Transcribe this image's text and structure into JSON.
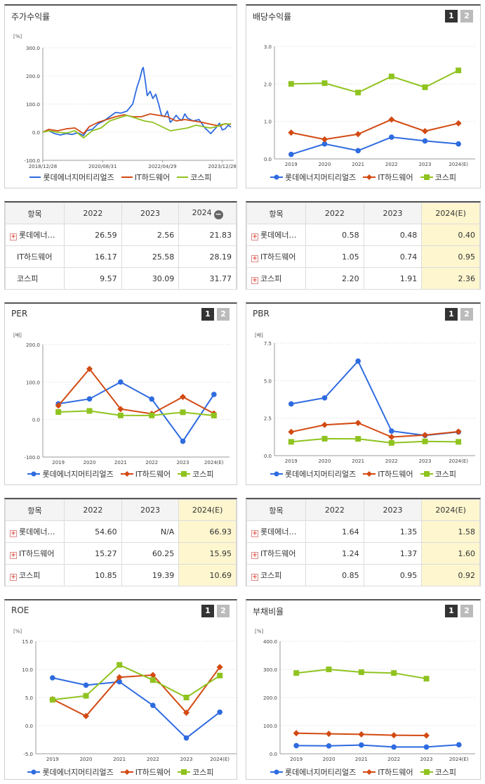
{
  "colors": {
    "lotte": "#2e6be0",
    "it": "#d24a12",
    "kospi": "#8fc31f"
  },
  "legend": [
    "롯데에너지머티리얼즈",
    "IT하드웨어",
    "코스피"
  ],
  "panels": {
    "stock": {
      "title": "주가수익률",
      "unit": "[%]"
    },
    "dividend": {
      "title": "배당수익률",
      "unit": ""
    },
    "per": {
      "title": "PER",
      "unit": "[배]"
    },
    "pbr": {
      "title": "PBR",
      "unit": "[배]"
    },
    "roe": {
      "title": "ROE",
      "unit": "[%]"
    },
    "debt": {
      "title": "부채비율",
      "unit": "[%]"
    }
  },
  "buttons": {
    "one": "1",
    "two": "2"
  },
  "tables": {
    "stock": {
      "headers": [
        "항목",
        "2022",
        "2023",
        "2024"
      ],
      "rows": [
        {
          "name": "롯데에너…",
          "v": [
            "26.59",
            "2.56",
            "21.83"
          ]
        },
        {
          "name": "IT하드웨어",
          "v": [
            "16.17",
            "25.58",
            "28.19"
          ]
        },
        {
          "name": "코스피",
          "v": [
            "9.57",
            "30.09",
            "31.77"
          ]
        }
      ]
    },
    "dividend": {
      "headers": [
        "항목",
        "2022",
        "2023",
        "2024(E)"
      ],
      "rows": [
        {
          "name": "롯데에너…",
          "v": [
            "0.58",
            "0.48",
            "0.40"
          ]
        },
        {
          "name": "IT하드웨어",
          "v": [
            "1.05",
            "0.74",
            "0.95"
          ]
        },
        {
          "name": "코스피",
          "v": [
            "2.20",
            "1.91",
            "2.36"
          ]
        }
      ]
    },
    "per": {
      "headers": [
        "항목",
        "2022",
        "2023",
        "2024(E)"
      ],
      "rows": [
        {
          "name": "롯데에너…",
          "v": [
            "54.60",
            "N/A",
            "66.93"
          ]
        },
        {
          "name": "IT하드웨어",
          "v": [
            "15.27",
            "60.25",
            "15.95"
          ]
        },
        {
          "name": "코스피",
          "v": [
            "10.85",
            "19.39",
            "10.69"
          ]
        }
      ]
    },
    "pbr": {
      "headers": [
        "항목",
        "2022",
        "2023",
        "2024(E)"
      ],
      "rows": [
        {
          "name": "롯데에너…",
          "v": [
            "1.64",
            "1.35",
            "1.58"
          ]
        },
        {
          "name": "IT하드웨어",
          "v": [
            "1.24",
            "1.37",
            "1.60"
          ]
        },
        {
          "name": "코스피",
          "v": [
            "0.85",
            "0.95",
            "0.92"
          ]
        }
      ]
    }
  },
  "chart_data": [
    {
      "id": "stock",
      "type": "line",
      "title": "주가수익률",
      "ylabel": "[%]",
      "ylim": [
        -100,
        300
      ],
      "yticks": [
        "-100.0",
        "0.0",
        "100.0",
        "200.0",
        "300.0"
      ],
      "x_tick_labels": [
        "2018/12/28",
        "2020/08/31",
        "2022/04/29",
        "2023/12/28"
      ],
      "x_range": [
        "2018-12-28",
        "2024-06-30"
      ],
      "series": [
        {
          "name": "롯데에너지머티리얼즈",
          "points": [
            [
              "2018-12-28",
              0
            ],
            [
              "2019-03-01",
              5
            ],
            [
              "2019-05-01",
              -5
            ],
            [
              "2019-07-01",
              -10
            ],
            [
              "2019-09-01",
              -5
            ],
            [
              "2019-11-01",
              -8
            ],
            [
              "2020-01-01",
              -2
            ],
            [
              "2020-03-01",
              -12
            ],
            [
              "2020-04-01",
              5
            ],
            [
              "2020-06-01",
              10
            ],
            [
              "2020-08-01",
              30
            ],
            [
              "2020-10-01",
              40
            ],
            [
              "2020-12-01",
              55
            ],
            [
              "2021-02-01",
              70
            ],
            [
              "2021-04-01",
              68
            ],
            [
              "2021-06-01",
              75
            ],
            [
              "2021-08-01",
              100
            ],
            [
              "2021-09-15",
              160
            ],
            [
              "2021-10-15",
              190
            ],
            [
              "2021-11-10",
              225
            ],
            [
              "2021-11-20",
              230
            ],
            [
              "2021-12-10",
              185
            ],
            [
              "2022-01-01",
              130
            ],
            [
              "2022-02-01",
              145
            ],
            [
              "2022-03-01",
              120
            ],
            [
              "2022-04-01",
              135
            ],
            [
              "2022-05-01",
              100
            ],
            [
              "2022-06-01",
              60
            ],
            [
              "2022-07-01",
              55
            ],
            [
              "2022-08-01",
              75
            ],
            [
              "2022-09-01",
              35
            ],
            [
              "2022-10-01",
              45
            ],
            [
              "2022-11-01",
              60
            ],
            [
              "2022-12-01",
              48
            ],
            [
              "2023-01-01",
              42
            ],
            [
              "2023-02-01",
              65
            ],
            [
              "2023-03-01",
              50
            ],
            [
              "2023-05-01",
              40
            ],
            [
              "2023-07-01",
              45
            ],
            [
              "2023-09-01",
              15
            ],
            [
              "2023-11-01",
              -5
            ],
            [
              "2024-01-01",
              18
            ],
            [
              "2024-02-01",
              32
            ],
            [
              "2024-03-01",
              8
            ],
            [
              "2024-04-01",
              12
            ],
            [
              "2024-05-01",
              25
            ],
            [
              "2024-06-01",
              18
            ]
          ]
        },
        {
          "name": "IT하드웨어",
          "points": [
            [
              "2018-12-28",
              0
            ],
            [
              "2019-03-01",
              10
            ],
            [
              "2019-06-01",
              5
            ],
            [
              "2019-09-01",
              12
            ],
            [
              "2019-12-01",
              15
            ],
            [
              "2020-03-01",
              -5
            ],
            [
              "2020-05-01",
              20
            ],
            [
              "2020-08-01",
              35
            ],
            [
              "2020-11-01",
              45
            ],
            [
              "2021-02-01",
              55
            ],
            [
              "2021-05-01",
              62
            ],
            [
              "2021-08-01",
              55
            ],
            [
              "2021-11-01",
              55
            ],
            [
              "2022-02-01",
              65
            ],
            [
              "2022-05-01",
              60
            ],
            [
              "2022-08-01",
              55
            ],
            [
              "2022-11-01",
              40
            ],
            [
              "2023-02-01",
              45
            ],
            [
              "2023-05-01",
              40
            ],
            [
              "2023-08-01",
              35
            ],
            [
              "2023-11-01",
              28
            ],
            [
              "2024-02-01",
              22
            ],
            [
              "2024-04-01",
              30
            ],
            [
              "2024-06-01",
              28
            ]
          ]
        },
        {
          "name": "코스피",
          "points": [
            [
              "2018-12-28",
              0
            ],
            [
              "2019-03-01",
              5
            ],
            [
              "2019-06-01",
              0
            ],
            [
              "2019-09-01",
              -3
            ],
            [
              "2019-12-01",
              5
            ],
            [
              "2020-03-01",
              -20
            ],
            [
              "2020-06-01",
              5
            ],
            [
              "2020-09-01",
              15
            ],
            [
              "2020-12-01",
              40
            ],
            [
              "2021-03-01",
              50
            ],
            [
              "2021-06-01",
              60
            ],
            [
              "2021-09-01",
              50
            ],
            [
              "2021-12-01",
              40
            ],
            [
              "2022-03-01",
              35
            ],
            [
              "2022-06-01",
              20
            ],
            [
              "2022-09-01",
              5
            ],
            [
              "2022-12-01",
              10
            ],
            [
              "2023-03-01",
              15
            ],
            [
              "2023-06-01",
              25
            ],
            [
              "2023-09-01",
              18
            ],
            [
              "2023-11-01",
              15
            ],
            [
              "2024-01-01",
              20
            ],
            [
              "2024-03-01",
              28
            ],
            [
              "2024-06-01",
              30
            ]
          ]
        }
      ]
    },
    {
      "id": "dividend",
      "type": "line",
      "title": "배당수익률",
      "categories": [
        "2019",
        "2020",
        "2021",
        "2022",
        "2023",
        "2024(E)"
      ],
      "ylim": [
        0,
        3
      ],
      "yticks": [
        "0.0",
        "1.0",
        "2.0",
        "3.0"
      ],
      "series": [
        {
          "name": "롯데에너지머티리얼즈",
          "values": [
            0.12,
            0.4,
            0.22,
            0.58,
            0.48,
            0.4
          ]
        },
        {
          "name": "IT하드웨어",
          "values": [
            0.7,
            0.52,
            0.66,
            1.05,
            0.74,
            0.95
          ]
        },
        {
          "name": "코스피",
          "values": [
            2.0,
            2.02,
            1.77,
            2.2,
            1.91,
            2.36
          ]
        }
      ]
    },
    {
      "id": "per",
      "type": "line",
      "title": "PER",
      "ylabel": "[배]",
      "categories": [
        "2019",
        "2020",
        "2021",
        "2022",
        "2023",
        "2024(E)"
      ],
      "ylim": [
        -100,
        200
      ],
      "yticks": [
        "-100.0",
        "0.0",
        "100.0",
        "200.0"
      ],
      "series": [
        {
          "name": "롯데에너지머티리얼즈",
          "values": [
            42,
            55,
            100,
            54.6,
            -58,
            66.93
          ]
        },
        {
          "name": "IT하드웨어",
          "values": [
            37,
            135,
            28,
            15.27,
            60.25,
            15.95
          ]
        },
        {
          "name": "코스피",
          "values": [
            20,
            23,
            11,
            10.85,
            19.39,
            10.69
          ]
        }
      ]
    },
    {
      "id": "pbr",
      "type": "line",
      "title": "PBR",
      "ylabel": "[배]",
      "categories": [
        "2019",
        "2020",
        "2021",
        "2022",
        "2023",
        "2024(E)"
      ],
      "ylim": [
        0,
        7.5
      ],
      "yticks": [
        "0.0",
        "2.5",
        "5.0",
        "7.5"
      ],
      "series": [
        {
          "name": "롯데에너지머티리얼즈",
          "values": [
            3.45,
            3.85,
            6.3,
            1.64,
            1.35,
            1.58
          ]
        },
        {
          "name": "IT하드웨어",
          "values": [
            1.58,
            2.05,
            2.18,
            1.24,
            1.37,
            1.6
          ]
        },
        {
          "name": "코스피",
          "values": [
            0.92,
            1.13,
            1.12,
            0.85,
            0.95,
            0.92
          ]
        }
      ]
    },
    {
      "id": "roe",
      "type": "line",
      "title": "ROE",
      "ylabel": "[%]",
      "categories": [
        "2019",
        "2020",
        "2021",
        "2022",
        "2023",
        "2024(E)"
      ],
      "ylim": [
        -5,
        15
      ],
      "yticks": [
        "-5.0",
        "0.0",
        "5.0",
        "10.0",
        "15.0"
      ],
      "series": [
        {
          "name": "롯데에너지머티리얼즈",
          "values": [
            8.5,
            7.2,
            7.8,
            3.6,
            -2.2,
            2.4
          ]
        },
        {
          "name": "IT하드웨어",
          "values": [
            4.7,
            1.7,
            8.6,
            9.0,
            2.3,
            10.4
          ]
        },
        {
          "name": "코스피",
          "values": [
            4.6,
            5.3,
            10.8,
            8.1,
            5.0,
            8.9
          ]
        }
      ]
    },
    {
      "id": "debt",
      "type": "line",
      "title": "부채비율",
      "ylabel": "[%]",
      "categories": [
        "2019",
        "2020",
        "2021",
        "2022",
        "2023",
        "2024(E)"
      ],
      "ylim": [
        0,
        400
      ],
      "yticks": [
        "0.0",
        "100.0",
        "200.0",
        "300.0",
        "400.0"
      ],
      "series": [
        {
          "name": "롯데에너지머티리얼즈",
          "values": [
            29,
            28,
            31,
            24,
            24,
            32
          ]
        },
        {
          "name": "IT하드웨어",
          "values": [
            73,
            71,
            69,
            66,
            65,
            null
          ]
        },
        {
          "name": "코스피",
          "values": [
            287,
            300,
            290,
            287,
            267,
            null
          ]
        }
      ]
    }
  ]
}
